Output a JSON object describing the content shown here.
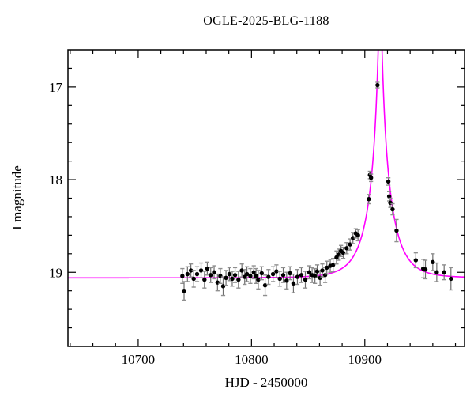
{
  "figure": {
    "title": "OGLE-2025-BLG-1188",
    "x_axis_label": "HJD - 2450000",
    "y_axis_label": "I magnitude"
  },
  "chart_data": {
    "type": "scatter",
    "title": "OGLE-2025-BLG-1188",
    "xlabel": "HJD - 2450000",
    "ylabel": "I magnitude",
    "xlim": [
      10638,
      10988
    ],
    "ylim": [
      16.6,
      19.8
    ],
    "y_axis_inverted": true,
    "x_major_ticks": [
      10700,
      10800,
      10900
    ],
    "x_minor_step": 20,
    "y_major_ticks": [
      17,
      18,
      19
    ],
    "y_minor_step": 0.2,
    "grid": false,
    "legend": "none",
    "colors": {
      "model_curve": "#ff00ff",
      "data_point": "#000000",
      "error_bar": "#6e6e6e",
      "error_cap": "#8f8f8f",
      "axis": "#000000"
    },
    "model": {
      "type": "paczynski_microlensing",
      "t0": 10913.5,
      "tE": 20,
      "u0": 0.06,
      "baseline_mag": 19.06
    },
    "points_format": [
      "hjd_minus_2450000",
      "I_mag",
      "err_mag"
    ],
    "points": [
      [
        10739.0,
        19.04,
        0.08
      ],
      [
        10740.5,
        19.2,
        0.1
      ],
      [
        10743.5,
        19.02,
        0.08
      ],
      [
        10746.5,
        18.98,
        0.07
      ],
      [
        10749.0,
        19.07,
        0.09
      ],
      [
        10752.0,
        19.02,
        0.08
      ],
      [
        10755.5,
        18.98,
        0.08
      ],
      [
        10758.5,
        19.08,
        0.09
      ],
      [
        10761.0,
        18.96,
        0.07
      ],
      [
        10764.0,
        19.03,
        0.08
      ],
      [
        10767.0,
        19.0,
        0.07
      ],
      [
        10770.0,
        19.11,
        0.09
      ],
      [
        10772.5,
        19.04,
        0.08
      ],
      [
        10775.0,
        19.15,
        0.1
      ],
      [
        10777.5,
        19.06,
        0.08
      ],
      [
        10780.5,
        19.02,
        0.07
      ],
      [
        10783.0,
        19.07,
        0.08
      ],
      [
        10785.5,
        19.03,
        0.08
      ],
      [
        10788.5,
        19.08,
        0.09
      ],
      [
        10791.5,
        18.98,
        0.07
      ],
      [
        10794.0,
        19.05,
        0.08
      ],
      [
        10796.0,
        19.02,
        0.08
      ],
      [
        10799.0,
        19.04,
        0.08
      ],
      [
        10802.0,
        19.0,
        0.07
      ],
      [
        10804.0,
        19.04,
        0.08
      ],
      [
        10806.0,
        19.08,
        0.1
      ],
      [
        10809.0,
        19.01,
        0.07
      ],
      [
        10812.0,
        19.14,
        0.11
      ],
      [
        10815.0,
        19.05,
        0.08
      ],
      [
        10819.0,
        19.02,
        0.08
      ],
      [
        10822.0,
        18.99,
        0.07
      ],
      [
        10825.0,
        19.07,
        0.08
      ],
      [
        10828.0,
        19.03,
        0.08
      ],
      [
        10831.0,
        19.09,
        0.09
      ],
      [
        10834.0,
        19.01,
        0.07
      ],
      [
        10837.0,
        19.12,
        0.1
      ],
      [
        10840.5,
        19.05,
        0.08
      ],
      [
        10844.0,
        19.03,
        0.08
      ],
      [
        10847.5,
        19.08,
        0.09
      ],
      [
        10851.0,
        19.0,
        0.07
      ],
      [
        10853.5,
        19.03,
        0.08
      ],
      [
        10856.0,
        19.04,
        0.08
      ],
      [
        10858.0,
        18.99,
        0.07
      ],
      [
        10860.5,
        19.06,
        0.08
      ],
      [
        10862.5,
        18.98,
        0.07
      ],
      [
        10865.0,
        19.03,
        0.08
      ],
      [
        10866.5,
        18.95,
        0.07
      ],
      [
        10869.5,
        18.93,
        0.07
      ],
      [
        10872.0,
        18.92,
        0.07
      ],
      [
        10875.0,
        18.84,
        0.07
      ],
      [
        10877.0,
        18.81,
        0.06
      ],
      [
        10879.0,
        18.77,
        0.06
      ],
      [
        10881.0,
        18.79,
        0.06
      ],
      [
        10884.0,
        18.74,
        0.06
      ],
      [
        10887.0,
        18.7,
        0.06
      ],
      [
        10889.5,
        18.63,
        0.06
      ],
      [
        10892.0,
        18.58,
        0.05
      ],
      [
        10894.0,
        18.6,
        0.06
      ],
      [
        10903.5,
        18.21,
        0.05
      ],
      [
        10904.5,
        17.95,
        0.04
      ],
      [
        10905.5,
        17.98,
        0.04
      ],
      [
        10911.2,
        16.98,
        0.03
      ],
      [
        10920.8,
        18.02,
        0.04
      ],
      [
        10921.5,
        18.18,
        0.05
      ],
      [
        10922.5,
        18.25,
        0.05
      ],
      [
        10924.5,
        18.32,
        0.06
      ],
      [
        10928.0,
        18.55,
        0.12
      ],
      [
        10945.0,
        18.87,
        0.08
      ],
      [
        10951.5,
        18.96,
        0.1
      ],
      [
        10953.5,
        18.97,
        0.1
      ],
      [
        10960.0,
        18.89,
        0.09
      ],
      [
        10963.5,
        19.0,
        0.1
      ],
      [
        10970.0,
        19.0,
        0.08
      ],
      [
        10976.0,
        19.07,
        0.12
      ]
    ]
  }
}
